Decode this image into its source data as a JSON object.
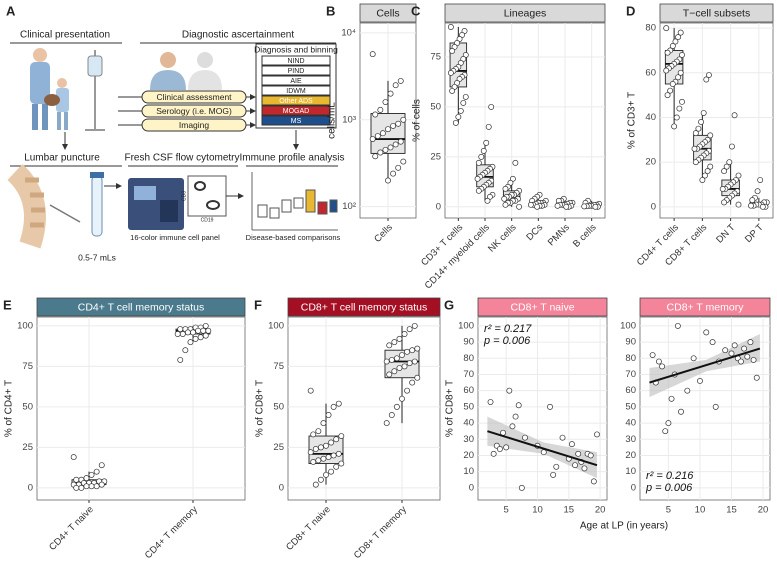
{
  "diagram": {
    "panel": "A",
    "clinical_presentation": "Clinical presentation",
    "diagnostic_ascertainment": "Diagnostic ascertainment",
    "binning_title": "Diagnosis and binning",
    "bins": [
      "NIND",
      "PIND",
      "AIE",
      "IDWM",
      "Other ADS",
      "MOGAD",
      "MS"
    ],
    "assessments": [
      "Clinical assessment",
      "Serology (i.e. MOG)",
      "Imaging"
    ],
    "lumbar_puncture": "Lumbar puncture",
    "flow": "Fresh CSF flow cytometry",
    "analysis": "Immune profile analysis",
    "volume": "0.5-7 mLs",
    "panel_note": "16-color immune cell panel",
    "comparisons": "Disease-based comparisons",
    "axis_y": "CD3",
    "axis_x": "CD19"
  },
  "chart_data": [
    {
      "type": "box",
      "panel": "B",
      "title": "Cells",
      "ylabel": "cells/mL",
      "log": true,
      "header_color": "#d9d9d9",
      "title_color": "#222222",
      "box_color": "#e6e6e6",
      "ylim": [
        74,
        13000
      ],
      "yticks": [
        {
          "value": 100,
          "label": "10²"
        },
        {
          "value": 1000,
          "label": "10³"
        },
        {
          "value": 10000,
          "label": "10⁴"
        }
      ],
      "categories": [
        "Cells"
      ],
      "boxes": [
        {
          "min": 200,
          "q1": 410,
          "median": 600,
          "q3": 1180,
          "max": 2800,
          "points": [
            5700,
            2800,
            2500,
            2000,
            1600,
            1300,
            1150,
            1000,
            900,
            850,
            780,
            700,
            650,
            600,
            560,
            520,
            480,
            450,
            420,
            380,
            330,
            280,
            240,
            200
          ]
        }
      ]
    },
    {
      "type": "box",
      "panel": "C",
      "title": "Lineages",
      "ylabel": "% of cells",
      "log": false,
      "header_color": "#d9d9d9",
      "title_color": "#222222",
      "box_color": "#e6e6e6",
      "ylim": [
        -5.6,
        92
      ],
      "yticks": [
        0,
        25,
        50,
        75
      ],
      "categories": [
        "CD3+ T cells",
        "CD14+ myeloid cells",
        "NK cells",
        "DCs",
        "PMNs",
        "B cells"
      ],
      "boxes": [
        {
          "min": 42,
          "q1": 60,
          "median": 68,
          "q3": 82,
          "max": 90,
          "points": [
            90,
            88,
            86,
            84,
            82,
            80,
            78,
            76,
            74,
            72,
            70,
            69,
            68,
            67,
            66,
            65,
            64,
            62,
            60,
            58,
            55,
            52,
            48,
            45,
            42
          ]
        },
        {
          "min": 3,
          "q1": 10,
          "median": 15,
          "q3": 21,
          "max": 32,
          "points": [
            50,
            40,
            32,
            28,
            25,
            22,
            20,
            19,
            18,
            17,
            16,
            15,
            14,
            13,
            12,
            11,
            10,
            9,
            8,
            6,
            5,
            3
          ]
        },
        {
          "min": 0,
          "q1": 3,
          "median": 5,
          "q3": 8,
          "max": 14,
          "points": [
            22,
            14,
            12,
            10,
            9,
            8,
            7,
            6,
            6,
            5,
            5,
            4,
            4,
            3,
            3,
            2,
            2,
            1,
            0
          ]
        },
        {
          "min": 0,
          "q1": 0.5,
          "median": 1.5,
          "q3": 3,
          "max": 6,
          "points": [
            6,
            5,
            4,
            3,
            3,
            2,
            2,
            2,
            1.5,
            1,
            1,
            1,
            0.5,
            0.5,
            0
          ]
        },
        {
          "min": 0,
          "q1": 0.5,
          "median": 1,
          "q3": 2,
          "max": 4,
          "points": [
            4,
            3,
            3,
            2,
            2,
            1.5,
            1,
            1,
            1,
            0.5,
            0.5,
            0,
            0
          ]
        },
        {
          "min": 0,
          "q1": 0.2,
          "median": 0.5,
          "q3": 1.2,
          "max": 3,
          "points": [
            3,
            2,
            1.5,
            1,
            1,
            0.5,
            0.5,
            0.3,
            0.2,
            0,
            0
          ]
        }
      ]
    },
    {
      "type": "box",
      "panel": "D",
      "title": "T−cell subsets",
      "ylabel": "% of CD3+ T",
      "log": false,
      "header_color": "#d9d9d9",
      "title_color": "#222222",
      "box_color": "#e6e6e6",
      "ylim": [
        -5,
        82.3
      ],
      "yticks": [
        0,
        20,
        40,
        60,
        80
      ],
      "categories": [
        "CD4+ T cells",
        "CD8+ T cells",
        "DN T",
        "DP T"
      ],
      "boxes": [
        {
          "min": 36,
          "q1": 55,
          "median": 64,
          "q3": 70,
          "max": 80,
          "points": [
            80,
            78,
            76,
            74,
            72,
            70,
            69,
            68,
            66,
            65,
            64,
            63,
            62,
            61,
            60,
            58,
            56,
            55,
            52,
            50,
            47,
            44,
            40,
            36
          ]
        },
        {
          "min": 12,
          "q1": 21,
          "median": 26,
          "q3": 32,
          "max": 42,
          "points": [
            59,
            57,
            42,
            38,
            35,
            33,
            32,
            30,
            29,
            28,
            27,
            26,
            26,
            25,
            24,
            23,
            22,
            21,
            20,
            18,
            16,
            14,
            12
          ]
        },
        {
          "min": 1,
          "q1": 5,
          "median": 8,
          "q3": 12,
          "max": 20,
          "points": [
            41,
            27,
            20,
            18,
            16,
            14,
            12,
            11,
            10,
            9,
            8,
            8,
            7,
            6,
            5,
            4,
            3,
            2,
            1
          ]
        },
        {
          "min": 0,
          "q1": 0.5,
          "median": 1,
          "q3": 2,
          "max": 4,
          "points": [
            12,
            7,
            4,
            3,
            2,
            2,
            1,
            1,
            1,
            0.5,
            0.5,
            0,
            0
          ]
        }
      ]
    },
    {
      "type": "box",
      "panel": "E",
      "title": "CD4+ T cell memory status",
      "ylabel": "% of CD4+ T",
      "log": false,
      "header_color": "#4a7a8c",
      "title_color": "#ffffff",
      "box_color": "#e6e6e6",
      "ylim": [
        -7.5,
        105.5
      ],
      "yticks": [
        0,
        25,
        50,
        75,
        100
      ],
      "categories": [
        "CD4+ T naive",
        "CD4+ T memory"
      ],
      "boxes": [
        {
          "min": 0,
          "q1": 2,
          "median": 3,
          "q3": 5,
          "max": 10,
          "points": [
            19,
            14,
            10,
            8,
            6,
            5,
            5,
            4,
            4,
            3,
            3,
            3,
            2,
            2,
            2,
            1,
            1,
            1,
            0,
            0
          ]
        },
        {
          "min": 90,
          "q1": 95,
          "median": 97,
          "q3": 98,
          "max": 100,
          "points": [
            100,
            99,
            99,
            98,
            98,
            98,
            97,
            97,
            97,
            96,
            96,
            95,
            95,
            94,
            93,
            92,
            90,
            85,
            79
          ]
        }
      ]
    },
    {
      "type": "box",
      "panel": "F",
      "title": "CD8+ T cell memory status",
      "ylabel": "% of CD8+ T",
      "log": false,
      "header_color": "#a50f24",
      "title_color": "#ffffff",
      "box_color": "#e6e6e6",
      "ylim": [
        -7.5,
        105.5
      ],
      "yticks": [
        0,
        25,
        50,
        75,
        100
      ],
      "categories": [
        "CD8+ T naive",
        "CD8+ T memory"
      ],
      "boxes": [
        {
          "min": 2,
          "q1": 15,
          "median": 21,
          "q3": 32,
          "max": 52,
          "points": [
            60,
            52,
            50,
            45,
            40,
            35,
            33,
            32,
            30,
            28,
            26,
            25,
            24,
            22,
            21,
            20,
            19,
            18,
            17,
            16,
            15,
            13,
            10,
            8,
            5,
            2
          ]
        },
        {
          "min": 40,
          "q1": 68,
          "median": 78,
          "q3": 85,
          "max": 100,
          "points": [
            100,
            98,
            95,
            92,
            90,
            88,
            86,
            85,
            84,
            82,
            80,
            79,
            78,
            78,
            77,
            75,
            74,
            72,
            70,
            68,
            65,
            60,
            55,
            50,
            45,
            40
          ]
        }
      ]
    },
    {
      "type": "scatter",
      "panel": "G",
      "title": "CD8+ T naive",
      "ylabel": "% of CD8+ T",
      "header_color": "#f4849a",
      "title_color": "#ffffff",
      "xlim": [
        0.5,
        21.1
      ],
      "xticks": [
        5,
        10,
        15,
        20
      ],
      "ylim": [
        -7.5,
        105.5
      ],
      "yticks": [
        0,
        10,
        20,
        30,
        40,
        50,
        60,
        70,
        80,
        90,
        100
      ],
      "x": [
        2.5,
        3,
        3.5,
        4,
        4.5,
        5,
        5.5,
        6,
        6.5,
        7,
        7.5,
        8,
        10,
        11,
        12,
        12.5,
        13,
        14,
        15,
        15.5,
        16,
        16.5,
        17,
        17.5,
        18,
        18.5,
        19,
        19.5
      ],
      "y": [
        53,
        21,
        26,
        24,
        34,
        25,
        60,
        38,
        44,
        51,
        0,
        31,
        26,
        22,
        50,
        8,
        13,
        31,
        18,
        27,
        14,
        21,
        16,
        12,
        21,
        20,
        4,
        33
      ],
      "fit": {
        "x": [
          2,
          19.5
        ],
        "y": [
          35,
          14
        ]
      },
      "band": {
        "x": [
          2,
          11,
          19.5
        ],
        "lower": [
          26,
          21,
          6
        ],
        "upper": [
          44,
          28,
          22
        ]
      },
      "annotations": [
        "r² = 0.217",
        "p = 0.006"
      ],
      "annotation_corner": "top-left"
    },
    {
      "type": "scatter",
      "title": "CD8+ T memory",
      "xlabel": "Age at LP (in years)",
      "header_color": "#f4849a",
      "title_color": "#ffffff",
      "xlim": [
        0.5,
        21.1
      ],
      "xticks": [
        5,
        10,
        15,
        20
      ],
      "ylim": [
        -7.5,
        105.5
      ],
      "yticks": [
        0,
        10,
        20,
        30,
        40,
        50,
        60,
        70,
        80,
        90,
        100
      ],
      "x": [
        2.5,
        3,
        3.5,
        4,
        4.5,
        5,
        5.5,
        6,
        6.5,
        7,
        8,
        9,
        10,
        11,
        12,
        12.5,
        13,
        14,
        15,
        15.5,
        16,
        16.5,
        17,
        17.5,
        18,
        18.5,
        19
      ],
      "y": [
        82,
        65,
        78,
        75,
        35,
        40,
        55,
        70,
        100,
        47,
        60,
        80,
        66,
        96,
        90,
        50,
        78,
        85,
        83,
        88,
        80,
        78,
        86,
        81,
        90,
        79,
        68
      ],
      "fit": {
        "x": [
          2,
          19.5
        ],
        "y": [
          65,
          86
        ]
      },
      "band": {
        "x": [
          2,
          11,
          19.5
        ],
        "lower": [
          56,
          72,
          78
        ],
        "upper": [
          74,
          79,
          95
        ]
      },
      "annotations": [
        "r² = 0.216",
        "p = 0.006"
      ],
      "annotation_corner": "bottom-left"
    }
  ]
}
